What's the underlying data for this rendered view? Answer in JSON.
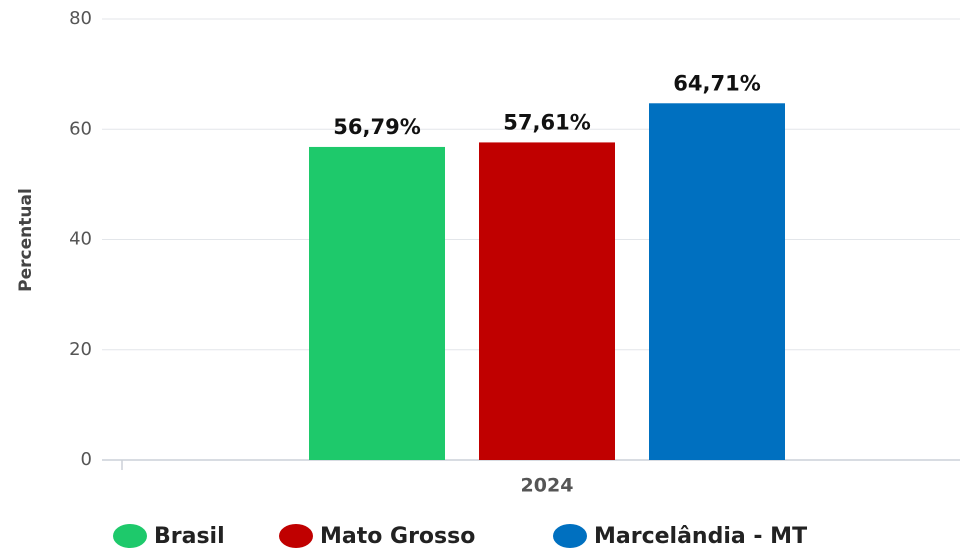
{
  "chart_data": {
    "type": "bar",
    "y_label": "Percentual",
    "categories": [
      "2024"
    ],
    "series": [
      {
        "name": "Brasil",
        "color": "#1ec96b",
        "values": [
          56.79
        ],
        "value_labels": [
          "56,79%"
        ]
      },
      {
        "name": "Mato Grosso",
        "color": "#c00000",
        "values": [
          57.61
        ],
        "value_labels": [
          "57,61%"
        ]
      },
      {
        "name": "Marcelândia - MT",
        "color": "#0070c0",
        "values": [
          64.71
        ],
        "value_labels": [
          "64,71%"
        ]
      }
    ],
    "ylim": [
      0,
      80
    ],
    "yticks": [
      0,
      20,
      40,
      60,
      80
    ],
    "grid": true,
    "legend": "bottom"
  }
}
